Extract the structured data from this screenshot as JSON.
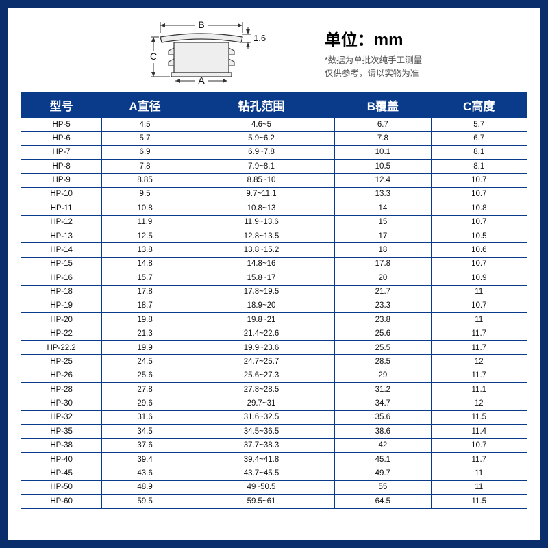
{
  "header": {
    "unit_label": "单位：mm",
    "disclaimer_line1": "*数据为单批次纯手工测量",
    "disclaimer_line2": "仅供参考，请以实物为准"
  },
  "diagram": {
    "label_A": "A",
    "label_B": "B",
    "label_C": "C",
    "dim_thickness": "1.6",
    "stroke": "#333333",
    "fill": "#eeeeee"
  },
  "table": {
    "columns": [
      "型号",
      "A直径",
      "钻孔范围",
      "B覆盖",
      "C高度"
    ],
    "header_bg": "#0a3a8a",
    "header_fg": "#ffffff",
    "border_color": "#0a3a8a",
    "col_widths_pct": [
      16,
      17,
      29,
      19,
      19
    ],
    "rows": [
      [
        "HP-5",
        "4.5",
        "4.6~5",
        "6.7",
        "5.7"
      ],
      [
        "HP-6",
        "5.7",
        "5.9~6.2",
        "7.8",
        "6.7"
      ],
      [
        "HP-7",
        "6.9",
        "6.9~7.8",
        "10.1",
        "8.1"
      ],
      [
        "HP-8",
        "7.8",
        "7.9~8.1",
        "10.5",
        "8.1"
      ],
      [
        "HP-9",
        "8.85",
        "8.85~10",
        "12.4",
        "10.7"
      ],
      [
        "HP-10",
        "9.5",
        "9.7~11.1",
        "13.3",
        "10.7"
      ],
      [
        "HP-11",
        "10.8",
        "10.8~13",
        "14",
        "10.8"
      ],
      [
        "HP-12",
        "11.9",
        "11.9~13.6",
        "15",
        "10.7"
      ],
      [
        "HP-13",
        "12.5",
        "12.8~13.5",
        "17",
        "10.5"
      ],
      [
        "HP-14",
        "13.8",
        "13.8~15.2",
        "18",
        "10.6"
      ],
      [
        "HP-15",
        "14.8",
        "14.8~16",
        "17.8",
        "10.7"
      ],
      [
        "HP-16",
        "15.7",
        "15.8~17",
        "20",
        "10.9"
      ],
      [
        "HP-18",
        "17.8",
        "17.8~19.5",
        "21.7",
        "11"
      ],
      [
        "HP-19",
        "18.7",
        "18.9~20",
        "23.3",
        "10.7"
      ],
      [
        "HP-20",
        "19.8",
        "19.8~21",
        "23.8",
        "11"
      ],
      [
        "HP-22",
        "21.3",
        "21.4~22.6",
        "25.6",
        "11.7"
      ],
      [
        "HP-22.2",
        "19.9",
        "19.9~23.6",
        "25.5",
        "11.7"
      ],
      [
        "HP-25",
        "24.5",
        "24.7~25.7",
        "28.5",
        "12"
      ],
      [
        "HP-26",
        "25.6",
        "25.6~27.3",
        "29",
        "11.7"
      ],
      [
        "HP-28",
        "27.8",
        "27.8~28.5",
        "31.2",
        "11.1"
      ],
      [
        "HP-30",
        "29.6",
        "29.7~31",
        "34.7",
        "12"
      ],
      [
        "HP-32",
        "31.6",
        "31.6~32.5",
        "35.6",
        "11.5"
      ],
      [
        "HP-35",
        "34.5",
        "34.5~36.5",
        "38.6",
        "11.4"
      ],
      [
        "HP-38",
        "37.6",
        "37.7~38.3",
        "42",
        "10.7"
      ],
      [
        "HP-40",
        "39.4",
        "39.4~41.8",
        "45.1",
        "11.7"
      ],
      [
        "HP-45",
        "43.6",
        "43.7~45.5",
        "49.7",
        "11"
      ],
      [
        "HP-50",
        "48.9",
        "49~50.5",
        "55",
        "11"
      ],
      [
        "HP-60",
        "59.5",
        "59.5~61",
        "64.5",
        "11.5"
      ]
    ]
  }
}
